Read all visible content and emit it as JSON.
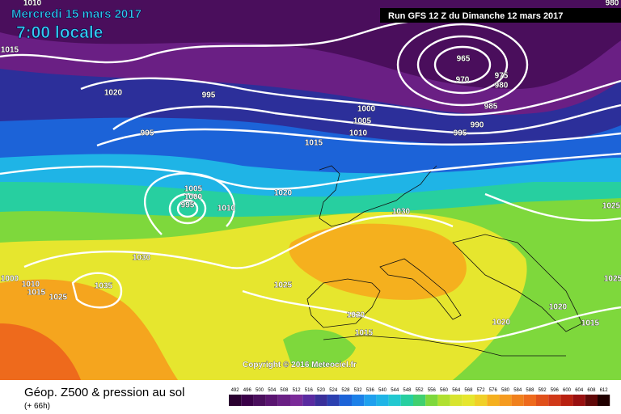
{
  "header": {
    "date": "Mercredi 15 mars 2017",
    "time": "7:00 locale",
    "run": "Run GFS 12 Z du Dimanche 12 mars 2017"
  },
  "copyright": "Copyright © 2016 Meteociel.fr",
  "footer": {
    "title": "Géop. Z500 & pression au sol",
    "lead": "(+ 66h)"
  },
  "legend": {
    "labels": [
      492,
      496,
      500,
      504,
      508,
      512,
      516,
      520,
      524,
      528,
      532,
      536,
      540,
      544,
      548,
      552,
      556,
      560,
      564,
      568,
      572,
      576,
      580,
      584,
      588,
      592,
      596,
      600,
      604,
      608,
      612
    ]
  },
  "isobar_labels": [
    "1015",
    "1020",
    "995",
    "995",
    "965",
    "970",
    "975",
    "980",
    "985",
    "990",
    "995",
    "1000",
    "1005",
    "1010",
    "1015",
    "1020",
    "1005",
    "1000",
    "995",
    "1010",
    "1030",
    "1030",
    "1035",
    "1000",
    "1010",
    "1015",
    "1025",
    "1025",
    "1020",
    "1015",
    "1020",
    "1020",
    "1015",
    "1025",
    "1025",
    "980",
    "1010"
  ]
}
